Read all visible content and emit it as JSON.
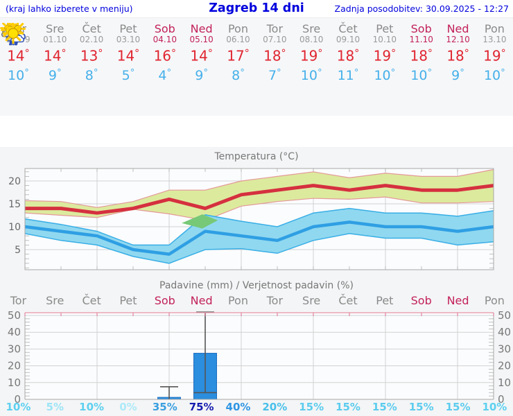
{
  "header": {
    "left": "(kraj lahko izberete v meniju)",
    "title": "Zagreb 14 dni",
    "right": "Zadnja posodobitev: 30.09.2025 - 12:27"
  },
  "degree": "°",
  "colors": {
    "link_blue": "#0000dd",
    "weekday_gray": "#8a8a8a",
    "weekend_red": "#c22159",
    "high_red": "#e02530",
    "low_blue": "#45b0ea",
    "max_line": "#d5303f",
    "max_band": "#dcea9e",
    "max_band_edge": "#e49898",
    "min_line": "#2f9fe3",
    "min_band": "#90d8f0",
    "min_band_edge": "#38aee6",
    "overlap_green": "#77c877",
    "bar_blue": "#2b8ede",
    "whisker_gray": "#555555",
    "precip_top_border": "#e9a4b4"
  },
  "days": [
    {
      "name": "Tor",
      "date": "30.09",
      "weekend": false,
      "icon": "cloudy",
      "high": 14,
      "low": 10,
      "prob": "10%",
      "prob_color": "#5dd0f0"
    },
    {
      "name": "Sre",
      "date": "01.10",
      "weekend": false,
      "icon": "partly",
      "high": 14,
      "low": 9,
      "prob": "5%",
      "prob_color": "#9ce4f6"
    },
    {
      "name": "Čet",
      "date": "02.10",
      "weekend": false,
      "icon": "partly",
      "high": 13,
      "low": 8,
      "prob": "10%",
      "prob_color": "#5dd0f0"
    },
    {
      "name": "Pet",
      "date": "03.10",
      "weekend": false,
      "icon": "sunny",
      "high": 14,
      "low": 5,
      "prob": "0%",
      "prob_color": "#ace9f8"
    },
    {
      "name": "Sob",
      "date": "04.10",
      "weekend": true,
      "icon": "rain",
      "high": 16,
      "low": 4,
      "prob": "35%",
      "prob_color": "#3a9fe0"
    },
    {
      "name": "Ned",
      "date": "05.10",
      "weekend": true,
      "icon": "sun-rain",
      "high": 14,
      "low": 9,
      "prob": "75%",
      "prob_color": "#161cae"
    },
    {
      "name": "Pon",
      "date": "06.10",
      "weekend": false,
      "icon": "partly",
      "high": 17,
      "low": 8,
      "prob": "40%",
      "prob_color": "#2f96e4"
    },
    {
      "name": "Tor",
      "date": "07.10",
      "weekend": false,
      "icon": "mostly-sunny",
      "high": 18,
      "low": 7,
      "prob": "20%",
      "prob_color": "#49c0ea"
    },
    {
      "name": "Sre",
      "date": "08.10",
      "weekend": false,
      "icon": "sunny",
      "high": 19,
      "low": 10,
      "prob": "15%",
      "prob_color": "#5bccee"
    },
    {
      "name": "Čet",
      "date": "09.10",
      "weekend": false,
      "icon": "sunny",
      "high": 18,
      "low": 11,
      "prob": "15%",
      "prob_color": "#5bccee"
    },
    {
      "name": "Pet",
      "date": "10.10",
      "weekend": false,
      "icon": "sunny",
      "high": 19,
      "low": 10,
      "prob": "15%",
      "prob_color": "#5bccee"
    },
    {
      "name": "Sob",
      "date": "11.10",
      "weekend": true,
      "icon": "sunny",
      "high": 18,
      "low": 10,
      "prob": "15%",
      "prob_color": "#5bccee"
    },
    {
      "name": "Ned",
      "date": "12.10",
      "weekend": true,
      "icon": "sunny",
      "high": 18,
      "low": 9,
      "prob": "15%",
      "prob_color": "#5bccee"
    },
    {
      "name": "Pon",
      "date": "13.10",
      "weekend": false,
      "icon": "sunny",
      "high": 19,
      "low": 10,
      "prob": "10%",
      "prob_color": "#5dd0f0"
    }
  ],
  "chart_data": [
    {
      "type": "line",
      "title": "Temperatura (°C)",
      "watermark": "vreme.us",
      "categories": [
        "Tor 30.09",
        "Sre 01.10",
        "Čet 02.10",
        "Pet 03.10",
        "Sob 04.10",
        "Ned 05.10",
        "Pon 06.10",
        "Tor 07.10",
        "Sre 08.10",
        "Čet 09.10",
        "Pet 10.10",
        "Sob 11.10",
        "Ned 12.10",
        "Pon 13.10"
      ],
      "yticks": [
        5,
        10,
        15,
        20
      ],
      "ylim": [
        0.6,
        22.7
      ],
      "grid": true,
      "series": [
        {
          "name": "max_temp",
          "values": [
            14,
            14,
            13,
            14,
            16,
            14,
            17,
            18,
            19,
            18,
            19,
            18,
            18,
            19
          ]
        },
        {
          "name": "max_band_upper",
          "values": [
            15.7,
            15.5,
            14.2,
            15.5,
            18,
            18,
            20,
            21,
            22,
            20.7,
            21.7,
            21,
            21,
            22.5
          ]
        },
        {
          "name": "max_band_lower",
          "values": [
            13,
            12.5,
            12,
            13.8,
            12.8,
            11.4,
            14.5,
            15.5,
            16.2,
            16,
            16.5,
            15.2,
            15.2,
            15.5
          ]
        },
        {
          "name": "min_temp",
          "values": [
            10,
            9,
            8,
            5,
            4,
            9,
            8,
            7,
            10,
            11,
            10,
            10,
            9,
            10
          ]
        },
        {
          "name": "min_band_upper",
          "values": [
            11.7,
            10.5,
            9,
            6,
            6,
            12.6,
            11.2,
            10,
            13,
            14,
            13,
            13,
            12.3,
            13.5
          ]
        },
        {
          "name": "min_band_lower",
          "values": [
            8.5,
            7,
            6,
            3.5,
            2,
            5,
            5.2,
            4.2,
            7,
            8.5,
            7.5,
            7.5,
            6,
            6.7
          ]
        }
      ],
      "overlap_polygon": [
        [
          4.35,
          10.8
        ],
        [
          4.92,
          12.7
        ],
        [
          5.35,
          11.4
        ],
        [
          4.92,
          9.6
        ]
      ]
    },
    {
      "type": "bar",
      "title": "Padavine (mm) / Verjetnost padavin (%)",
      "categories": [
        "Tor",
        "Sre",
        "Čet",
        "Pet",
        "Sob",
        "Ned",
        "Pon",
        "Tor",
        "Sre",
        "Čet",
        "Pet",
        "Sob",
        "Ned",
        "Pon"
      ],
      "weekend_flags": [
        false,
        false,
        false,
        false,
        true,
        true,
        false,
        false,
        false,
        false,
        false,
        true,
        true,
        false
      ],
      "yticks": [
        0,
        10,
        20,
        30,
        40,
        50
      ],
      "ylim": [
        0,
        51.6
      ],
      "grid": true,
      "values": [
        0,
        0,
        0,
        0,
        1.2,
        27.5,
        0,
        0,
        0,
        0,
        0,
        0,
        0,
        0
      ],
      "whiskers": [
        {
          "day_index": 4,
          "low": 0,
          "high": 7.5
        },
        {
          "day_index": 5,
          "low": 4,
          "high": 52
        }
      ],
      "probabilities_percent": [
        10,
        5,
        10,
        0,
        35,
        75,
        40,
        20,
        15,
        15,
        15,
        15,
        15,
        10
      ]
    }
  ]
}
